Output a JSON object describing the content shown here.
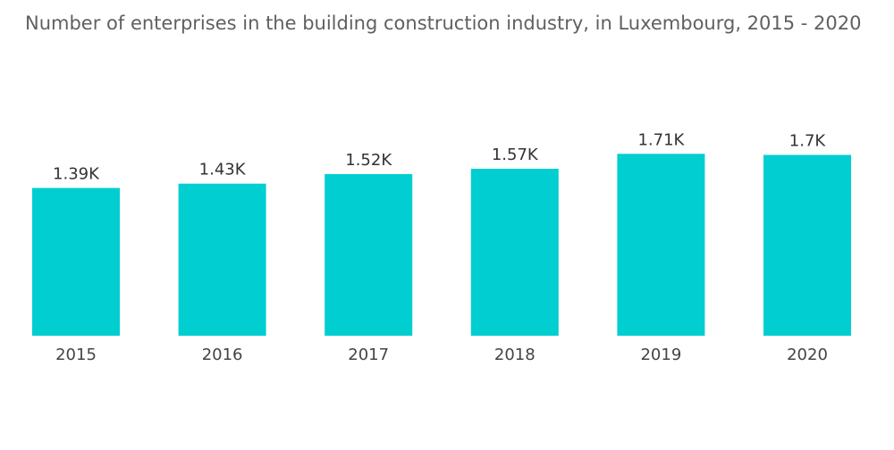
{
  "chart_data": {
    "type": "bar",
    "title": "Number of enterprises in the building construction industry, in Luxembourg, 2015 - 2020",
    "categories": [
      "2015",
      "2016",
      "2017",
      "2018",
      "2019",
      "2020"
    ],
    "values": [
      1390,
      1430,
      1520,
      1570,
      1710,
      1700
    ],
    "data_labels": [
      "1.39K",
      "1.43K",
      "1.52K",
      "1.57K",
      "1.71K",
      "1.7K"
    ],
    "xlabel": "",
    "ylabel": "",
    "ylim": [
      0,
      1900
    ],
    "grid": false,
    "bar_color": "#00CED1"
  }
}
